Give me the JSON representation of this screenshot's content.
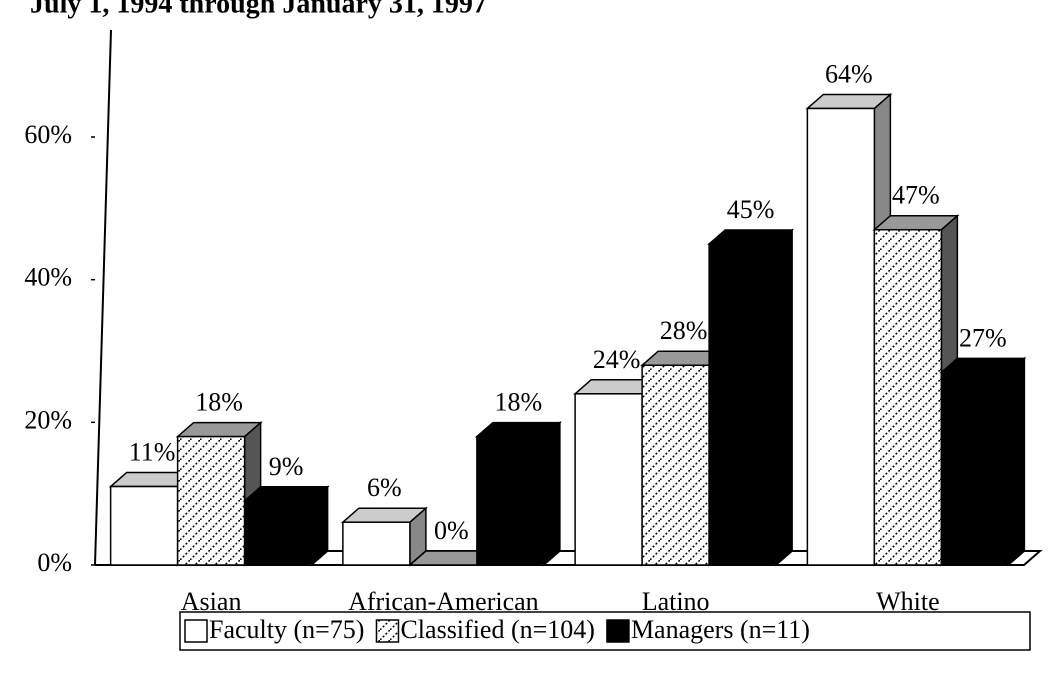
{
  "chart_data": {
    "type": "bar3d",
    "title": "July 1, 1994 through January 31, 1997",
    "categories": [
      "Asian",
      "African-American",
      "Latino",
      "White"
    ],
    "series": [
      {
        "name": "Faculty (n=75)",
        "color": "#ffffff",
        "values": [
          11,
          6,
          24,
          64
        ],
        "value_labels": [
          "11%",
          "6%",
          "24%",
          "64%"
        ]
      },
      {
        "name": "Classified (n=104)",
        "color": "hatched",
        "values": [
          18,
          0,
          28,
          47
        ],
        "value_labels": [
          "18%",
          "0%",
          "28%",
          "47%"
        ]
      },
      {
        "name": "Managers (n=11)",
        "color": "#000000",
        "values": [
          9,
          18,
          45,
          27
        ],
        "value_labels": [
          "9%",
          "18%",
          "45%",
          "27%"
        ]
      }
    ],
    "ylim": [
      0,
      75
    ],
    "yticks": [
      {
        "value": 0,
        "label": "0%"
      },
      {
        "value": 20,
        "label": "20%"
      },
      {
        "value": 40,
        "label": "40%"
      },
      {
        "value": 60,
        "label": "60%"
      }
    ],
    "legend": "bottom"
  }
}
